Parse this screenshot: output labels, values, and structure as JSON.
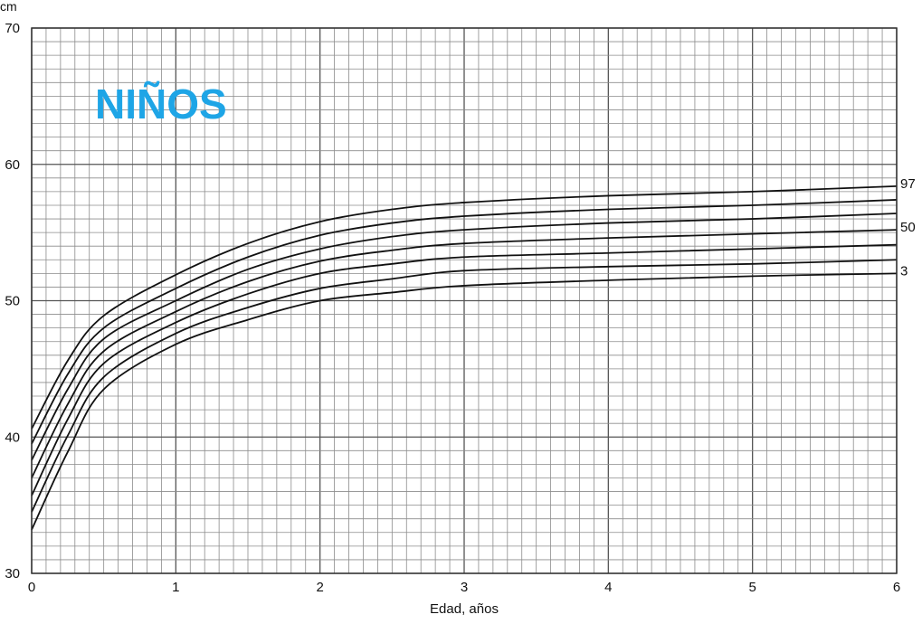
{
  "chart_data": {
    "type": "line",
    "title": "NIÑOS",
    "title_color": "#1ea5e6",
    "xlabel": "Edad, años",
    "ylabel": "cm",
    "xlim": [
      0,
      6
    ],
    "ylim": [
      30,
      70
    ],
    "x_ticks": [
      "0",
      "1",
      "2",
      "3",
      "4",
      "5",
      "6"
    ],
    "y_ticks": [
      "30",
      "40",
      "50",
      "60",
      "70"
    ],
    "grid": true,
    "x": [
      0,
      0.25,
      0.5,
      1,
      1.5,
      2,
      2.5,
      3,
      4,
      5,
      6
    ],
    "series": [
      {
        "label": "97",
        "values": [
          40.6,
          45.6,
          48.9,
          51.9,
          54.2,
          55.8,
          56.7,
          57.2,
          57.7,
          58.0,
          58.4
        ]
      },
      {
        "values": [
          39.5,
          44.6,
          48.0,
          50.9,
          53.2,
          54.8,
          55.7,
          56.2,
          56.7,
          57.0,
          57.4
        ]
      },
      {
        "values": [
          38.3,
          43.5,
          47.2,
          50.0,
          52.3,
          53.8,
          54.7,
          55.2,
          55.7,
          56.0,
          56.4
        ]
      },
      {
        "label": "50",
        "values": [
          37.0,
          42.4,
          46.3,
          49.2,
          51.4,
          52.9,
          53.7,
          54.2,
          54.6,
          54.9,
          55.2
        ]
      },
      {
        "values": [
          35.7,
          41.3,
          45.4,
          48.4,
          50.5,
          52.0,
          52.7,
          53.2,
          53.5,
          53.8,
          54.1
        ]
      },
      {
        "values": [
          34.5,
          40.1,
          44.4,
          47.6,
          49.5,
          50.9,
          51.6,
          52.2,
          52.5,
          52.7,
          53.0
        ]
      },
      {
        "label": "3",
        "values": [
          33.2,
          38.9,
          43.5,
          46.8,
          48.6,
          50.0,
          50.6,
          51.1,
          51.5,
          51.8,
          52.0
        ]
      }
    ]
  }
}
